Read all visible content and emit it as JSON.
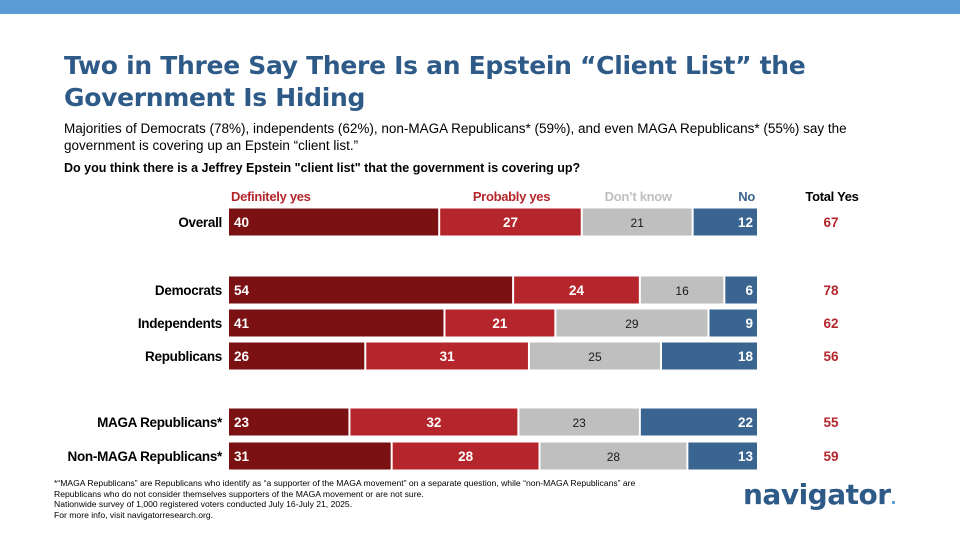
{
  "title": "Two in Three Say There Is an Epstein “Client List” the Government Is Hiding",
  "subtitle": "Majorities of Democrats (78%), independents (62%), non-MAGA Republicans* (59%), and even MAGA Republicans* (55%) say the government is covering up an Epstein “client list.”",
  "question": "Do you think there is a Jeffrey Epstein \"client list\" that the government is covering up?",
  "colors": {
    "definitely_yes": "#7b1113",
    "probably_yes": "#b5262c",
    "dont_know": "#bfbfbf",
    "no": "#3a6591",
    "total_yes_text": "#b5262c",
    "title": "#2e5a88"
  },
  "chart_data": {
    "type": "bar",
    "orientation": "horizontal",
    "stacked": true,
    "title": "Two in Three Say There Is an Epstein “Client List” the Government Is Hiding",
    "categories": [
      "Overall",
      "Democrats",
      "Independents",
      "Republicans",
      "MAGA Republicans*",
      "Non-MAGA Republicans*"
    ],
    "series": [
      {
        "name": "Definitely yes",
        "values": [
          40,
          54,
          41,
          26,
          23,
          31
        ]
      },
      {
        "name": "Probably yes",
        "values": [
          27,
          24,
          21,
          31,
          32,
          28
        ]
      },
      {
        "name": "Don’t know",
        "values": [
          21,
          16,
          29,
          25,
          23,
          28
        ]
      },
      {
        "name": "No",
        "values": [
          12,
          6,
          9,
          18,
          22,
          13
        ]
      }
    ],
    "total_yes_label": "Total Yes",
    "total_yes": [
      67,
      78,
      62,
      56,
      55,
      59
    ],
    "xlim": [
      0,
      100
    ],
    "legend": "top"
  },
  "footnotes": [
    "*“MAGA Republicans” are Republicans who identify as “a supporter of the MAGA movement” on a separate question, while “non-MAGA Republicans” are Republicans who do not consider themselves supporters of the MAGA movement or are not sure.",
    "Nationwide survey of 1,000 registered voters conducted July 16-July 21, 2025.",
    "For more info, visit navigatorresearch.org."
  ],
  "logo": {
    "text": "navigator",
    "dot": "."
  }
}
